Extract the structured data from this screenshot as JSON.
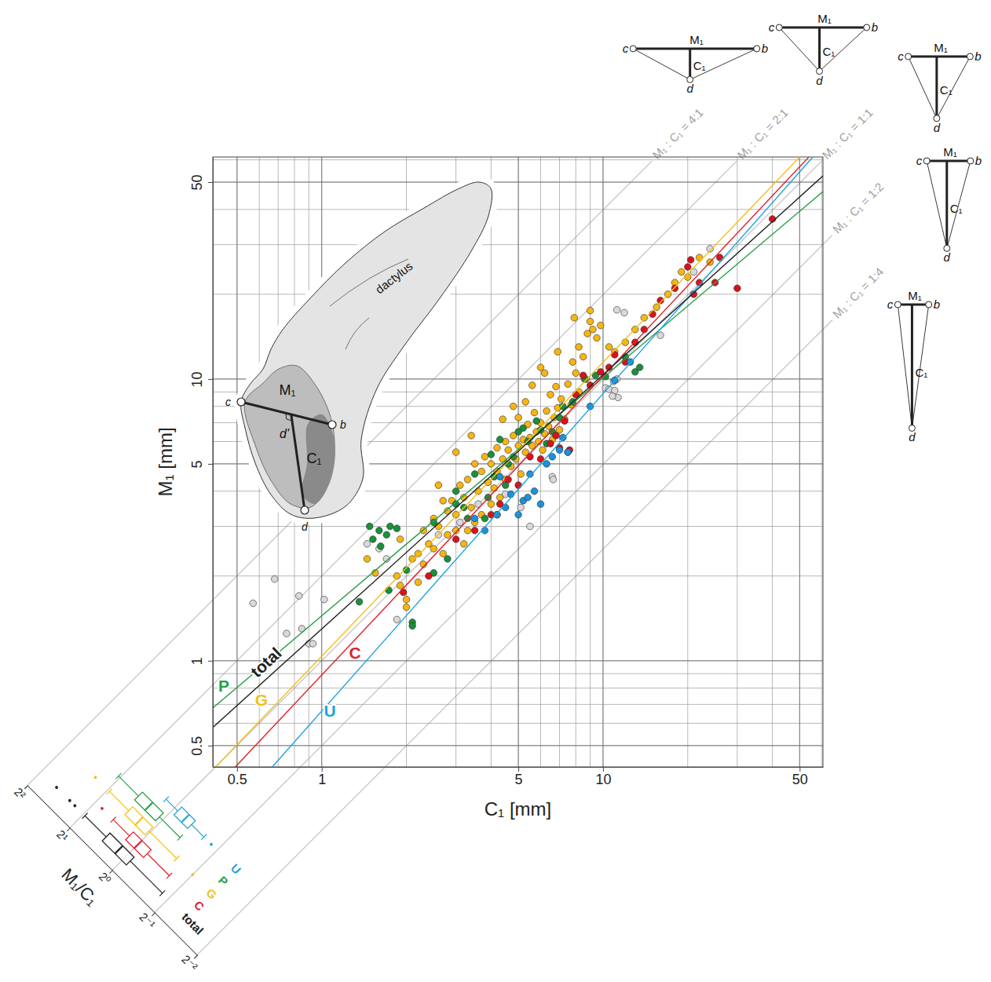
{
  "chart_data": {
    "type": "scatter",
    "log": true,
    "grid": true,
    "x_label": "C₁ [mm]",
    "y_label": "M₁ [mm]",
    "xlim": [
      0.41,
      60.5
    ],
    "ylim": [
      0.42,
      61.4
    ],
    "xticks": [
      0.5,
      1,
      5,
      10,
      50
    ],
    "yticks": [
      0.5,
      1,
      5,
      10,
      50
    ],
    "series": [
      {
        "type": "scatter",
        "marker": "circle",
        "color": "#d9d9d9",
        "x": [
          0.57,
          0.68,
          0.75,
          0.83,
          0.85,
          0.9,
          0.93,
          1.02,
          1.45,
          1.6,
          1.7,
          1.85,
          2.6,
          3.1,
          3.6,
          4.2,
          4.5,
          5.1,
          5.5,
          6.6,
          6.65,
          7.5,
          10.2,
          10.5,
          10.9,
          11.0,
          11.3,
          11.2,
          10.8,
          11.2,
          11.9,
          16.0,
          21.0,
          24.0
        ],
        "values": [
          1.6,
          1.95,
          1.25,
          1.7,
          1.3,
          1.15,
          1.15,
          1.65,
          2.6,
          2.5,
          2.3,
          1.4,
          2.8,
          3.1,
          3.6,
          3.3,
          3.9,
          3.5,
          3.0,
          4.5,
          4.4,
          5.5,
          9.3,
          9.2,
          9.8,
          9.1,
          8.6,
          10.0,
          8.7,
          17.6,
          17.2,
          14.3,
          24.0,
          29.0
        ]
      },
      {
        "type": "scatter",
        "marker": "circle",
        "color": "#f6b512",
        "x": [
          1.85,
          1.9,
          2.0,
          2.0,
          2.1,
          2.2,
          2.3,
          2.3,
          2.4,
          2.5,
          2.5,
          2.6,
          2.7,
          2.8,
          2.8,
          2.9,
          3.0,
          3.0,
          3.1,
          3.2,
          3.2,
          3.3,
          3.3,
          3.4,
          3.5,
          3.5,
          3.6,
          3.7,
          3.7,
          3.8,
          3.9,
          4.0,
          4.0,
          4.1,
          4.2,
          4.2,
          4.3,
          4.4,
          4.5,
          4.5,
          4.6,
          4.7,
          4.8,
          4.9,
          5.0,
          5.0,
          5.1,
          5.2,
          5.3,
          5.4,
          5.5,
          5.6,
          5.7,
          5.8,
          5.9,
          6.0,
          6.1,
          6.2,
          6.3,
          6.4,
          6.5,
          6.6,
          6.7,
          6.8,
          6.9,
          7.0,
          7.1,
          7.3,
          7.5,
          7.7,
          8.0,
          8.2,
          8.5,
          8.7,
          9.0,
          9.2,
          9.5,
          9.8,
          9.0,
          8.8,
          10.5,
          11.0,
          12.0,
          13.0,
          14.0,
          15.5,
          17.0,
          18.0,
          19.0,
          20.0,
          22.0,
          24.0,
          3.0,
          2.6,
          3.4,
          5.3,
          6.2,
          6.0,
          1.45,
          1.55,
          1.9,
          2.2,
          2.7,
          4.4,
          4.8,
          5.6,
          7.8,
          6.9,
          7.9,
          8.2
        ],
        "values": [
          2.0,
          1.85,
          1.65,
          1.55,
          2.3,
          2.4,
          2.2,
          2.9,
          2.6,
          3.2,
          2.5,
          3.0,
          2.4,
          2.8,
          3.4,
          3.7,
          2.9,
          3.3,
          4.2,
          2.6,
          3.8,
          2.9,
          4.4,
          3.5,
          3.1,
          5.0,
          4.0,
          4.7,
          3.3,
          5.3,
          4.3,
          3.6,
          5.0,
          4.1,
          5.7,
          4.7,
          3.8,
          5.2,
          4.4,
          6.0,
          5.6,
          4.9,
          6.3,
          5.2,
          5.8,
          7.3,
          4.6,
          6.1,
          5.5,
          6.9,
          6.2,
          5.8,
          7.6,
          6.5,
          6.0,
          7.0,
          5.6,
          6.4,
          7.7,
          6.8,
          8.8,
          6.1,
          7.3,
          9.4,
          7.9,
          6.6,
          8.5,
          7.2,
          9.6,
          8.1,
          10.5,
          9.0,
          12.0,
          10.0,
          16.0,
          15.0,
          14.0,
          15.5,
          17.5,
          14.5,
          13.0,
          12.5,
          13.5,
          15.0,
          16.5,
          18.0,
          20.0,
          22.0,
          24.0,
          23.0,
          27.0,
          26.0,
          5.5,
          4.2,
          6.3,
          8.3,
          10.5,
          11.0,
          2.3,
          2.05,
          2.7,
          1.9,
          3.7,
          7.2,
          8.0,
          9.5,
          11.5,
          12.5,
          16.5,
          13.0
        ]
      },
      {
        "type": "scatter",
        "marker": "circle",
        "color": "#1a8f3c",
        "x": [
          1.36,
          1.73,
          1.48,
          1.52,
          1.6,
          1.62,
          1.7,
          1.75,
          1.85,
          2.1,
          2.1,
          2.0,
          2.5,
          2.8,
          3.0,
          3.0,
          3.3,
          3.5,
          3.8,
          4.0,
          4.1,
          4.3,
          4.5,
          4.6,
          4.8,
          5.0,
          5.2,
          5.4,
          5.8,
          6.0,
          6.3,
          6.6,
          7.0,
          7.2,
          7.8,
          8.6,
          9.4,
          10.2,
          12.0,
          13.0,
          13.5,
          3.9,
          3.2,
          2.5
        ],
        "values": [
          1.62,
          1.78,
          3.0,
          2.7,
          2.9,
          2.55,
          2.8,
          3.0,
          2.95,
          1.37,
          1.33,
          2.1,
          2.05,
          2.3,
          3.6,
          4.0,
          3.2,
          4.6,
          3.2,
          5.4,
          4.5,
          6.1,
          4.2,
          5.0,
          5.3,
          6.5,
          6.7,
          6.0,
          7.1,
          6.6,
          5.9,
          6.5,
          7.3,
          8.0,
          8.3,
          10.0,
          10.3,
          10.2,
          12.0,
          10.6,
          11.0,
          3.8,
          3.5,
          3.1
        ]
      },
      {
        "type": "scatter",
        "marker": "circle",
        "color": "#d7141b",
        "x": [
          1.95,
          2.4,
          3.0,
          3.5,
          4.0,
          4.3,
          4.6,
          5.0,
          5.5,
          6.0,
          6.5,
          6.8,
          7.0,
          7.3,
          8.0,
          8.5,
          9.0,
          9.8,
          10.5,
          11.0,
          12.0,
          13.0,
          14.0,
          15.0,
          16.0,
          18.0,
          20.0,
          21.0,
          22.0,
          25.0,
          26.0,
          30.0,
          40.0,
          20.5,
          7.6
        ],
        "values": [
          1.75,
          2.0,
          2.7,
          2.9,
          3.3,
          3.6,
          4.4,
          4.2,
          5.3,
          5.2,
          5.9,
          6.3,
          5.7,
          7.1,
          8.8,
          10.3,
          9.5,
          10.6,
          11.0,
          12.2,
          11.5,
          13.5,
          15.0,
          17.0,
          19.0,
          21.0,
          25.0,
          20.0,
          22.0,
          22.0,
          27.0,
          21.0,
          37.0,
          26.5,
          5.6
        ]
      },
      {
        "type": "scatter",
        "marker": "circle",
        "color": "#1d91d8",
        "x": [
          3.8,
          4.2,
          4.5,
          4.7,
          5.0,
          5.2,
          5.4,
          5.5,
          5.7,
          6.0,
          6.3,
          6.6,
          7.0,
          7.5,
          7.2,
          9.0,
          11.0,
          12.5,
          4.3,
          3.5
        ],
        "values": [
          2.9,
          3.3,
          3.5,
          3.9,
          3.3,
          3.7,
          3.8,
          4.6,
          4.0,
          3.6,
          5.0,
          5.3,
          5.6,
          5.5,
          6.2,
          8.0,
          9.9,
          11.5,
          4.5,
          3.2
        ]
      },
      {
        "name": "P",
        "type": "line",
        "line_style": "solid",
        "color": "#2a9d4a",
        "x": [
          0.41,
          60.5
        ],
        "values": [
          0.68,
          46.3
        ]
      },
      {
        "name": "G",
        "type": "line",
        "line_style": "solid",
        "color": "#f3bf1a",
        "x": [
          0.42,
          50.0
        ],
        "values": [
          0.42,
          61.4
        ]
      },
      {
        "name": "C",
        "type": "line",
        "line_style": "solid",
        "color": "#e0202a",
        "x": [
          0.493,
          53.9
        ],
        "values": [
          0.42,
          61.4
        ]
      },
      {
        "name": "U",
        "type": "line",
        "line_style": "solid",
        "color": "#1fa3e0",
        "x": [
          0.667,
          55.7
        ],
        "values": [
          0.42,
          61.4
        ]
      },
      {
        "name": "total",
        "type": "line",
        "line_style": "solid",
        "color": "#222222",
        "x": [
          0.41,
          60.5
        ],
        "values": [
          0.58,
          52.6
        ]
      }
    ],
    "ratio_lines": [
      {
        "value": 4,
        "label": "M₁ : C₁ = 4:1"
      },
      {
        "value": 2,
        "label": "M₁ : C₁ = 2:1"
      },
      {
        "value": 1,
        "label": "M₁ : C₁ = 1:1"
      },
      {
        "value": 0.5,
        "label": "M₁ : C₁ = 1:2"
      },
      {
        "value": 0.25,
        "label": "M₁ : C₁ = 1:4"
      }
    ],
    "boxplots": {
      "title": "M₁/C₁",
      "lim": [
        0.25,
        4
      ],
      "ticks": [
        {
          "value": 4,
          "label": "2²"
        },
        {
          "value": 2,
          "label": "2¹"
        },
        {
          "value": 1,
          "label": "2⁰"
        },
        {
          "value": 0.5,
          "label": "2⁻¹"
        },
        {
          "value": 0.25,
          "label": "2⁻²"
        }
      ],
      "groups": [
        {
          "name": "total",
          "color": "#222222",
          "whisker_low": 0.55,
          "q1": 0.93,
          "median": 1.12,
          "q3": 1.38,
          "whisker_high": 1.95,
          "outliers": [
            2.3,
            2.5,
            3.1
          ]
        },
        {
          "name": "C",
          "color": "#e0202a",
          "whisker_low": 0.6,
          "q1": 0.86,
          "median": 1.0,
          "q3": 1.15,
          "whisker_high": 1.5,
          "outliers": [
            1.8
          ]
        },
        {
          "name": "G",
          "color": "#f3bf1a",
          "whisker_low": 0.65,
          "q1": 1.02,
          "median": 1.2,
          "q3": 1.42,
          "whisker_high": 1.95,
          "outliers": [
            2.45,
            0.5
          ]
        },
        {
          "name": "P",
          "color": "#2a9d4a",
          "whisker_low": 0.75,
          "q1": 1.05,
          "median": 1.25,
          "q3": 1.48,
          "whisker_high": 2.05
        },
        {
          "name": "U",
          "color": "#1fa3e0",
          "whisker_low": 0.62,
          "q1": 0.76,
          "median": 0.84,
          "q3": 0.95,
          "whisker_high": 1.15,
          "outliers": [
            0.55
          ]
        }
      ]
    },
    "schematic": {
      "dactylus": "dactylus",
      "c": "c",
      "b": "b",
      "d": "d",
      "d_prime": "d'",
      "M": "M₁",
      "C": "C₁"
    }
  }
}
